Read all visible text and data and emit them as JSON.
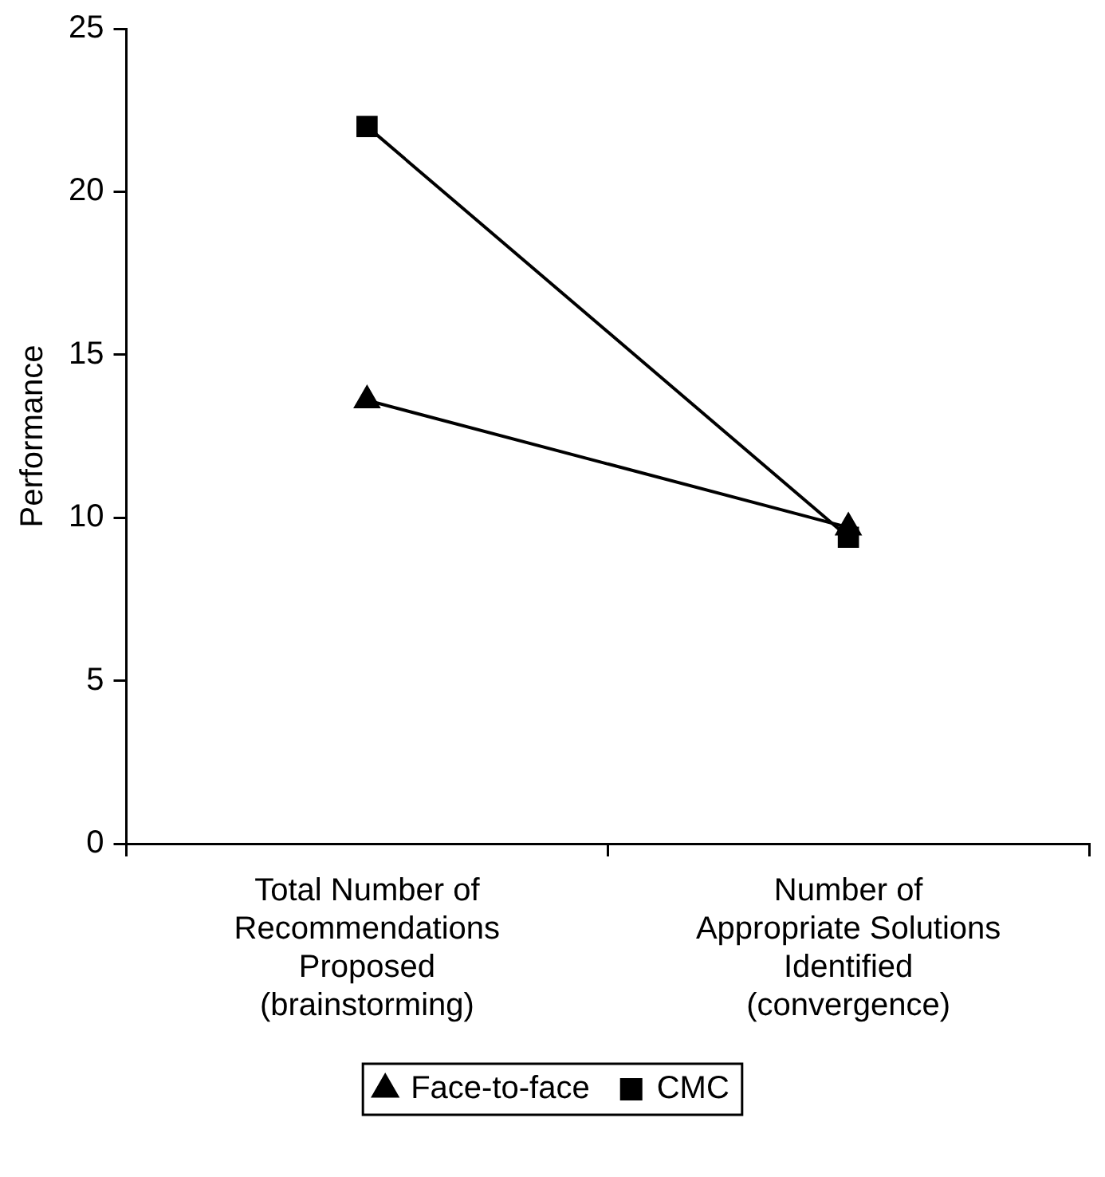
{
  "chart_data": {
    "type": "line",
    "ylabel": "Performance",
    "categories": [
      "Total Number of\nRecommendations\nProposed\n(brainstorming)",
      "Number of\nAppropriate Solutions\nIdentified\n(convergence)"
    ],
    "series": [
      {
        "name": "Face-to-face",
        "color": "#000000",
        "marker": "triangle",
        "values": [
          13.6,
          9.7
        ]
      },
      {
        "name": "CMC",
        "color": "#000000",
        "marker": "square",
        "values": [
          22.0,
          9.4
        ]
      }
    ],
    "ylim": [
      0,
      25
    ],
    "yticks": [
      0,
      5,
      10,
      15,
      20,
      25
    ],
    "grid": false,
    "legend": "bottom",
    "line_style": "solid"
  }
}
